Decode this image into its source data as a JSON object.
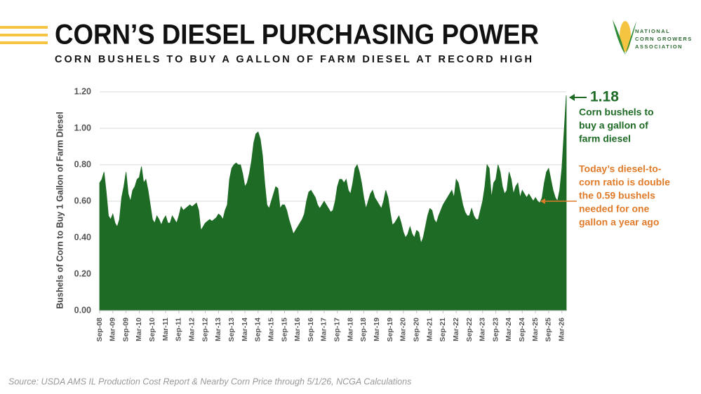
{
  "chart_data": {
    "type": "area",
    "title": "CORN’S DIESEL PURCHASING POWER",
    "subtitle": "CORN BUSHELS TO BUY A GALLON OF FARM DIESEL AT RECORD HIGH",
    "y_label": "Bushels of Corn to Buy 1 Gallon of Farm Diesel",
    "source": "Source: USDA AMS IL Production Cost Report & Nearby Corn Price through 5/1/26, NCGA Calculations",
    "logo": [
      "NATIONAL",
      "CORN GROWERS",
      "ASSOCIATION"
    ],
    "color": "#1e6b26",
    "grid": true,
    "ylim": [
      0,
      1.2
    ],
    "yticks": [
      {
        "value": 0,
        "label": "0.00"
      },
      {
        "value": 0.2,
        "label": "0.20"
      },
      {
        "value": 0.4,
        "label": "0.40"
      },
      {
        "value": 0.6,
        "label": "0.60"
      },
      {
        "value": 0.8,
        "label": "0.80"
      },
      {
        "value": 1.0,
        "label": "1.00"
      },
      {
        "value": 1.2,
        "label": "1.20"
      }
    ],
    "annotations": [
      {
        "color": "#1e6b26",
        "lines": [
          "Corn bushels to",
          "buy a gallon of",
          "farm diesel"
        ]
      },
      {
        "color": "#e07b2a",
        "lines": [
          "Today’s diesel-to-",
          "corn ratio is double",
          "the 0.59 bushels",
          "needed for one",
          "gallon a year ago"
        ]
      }
    ],
    "categories": [
      "Sep-08",
      null,
      null,
      null,
      null,
      null,
      "Mar-09",
      null,
      null,
      null,
      null,
      null,
      "Sep-09",
      null,
      null,
      null,
      null,
      null,
      "Mar-10",
      null,
      null,
      null,
      null,
      null,
      "Sep-10",
      null,
      null,
      null,
      null,
      null,
      "Mar-11",
      null,
      null,
      null,
      null,
      null,
      "Sep-11",
      null,
      null,
      null,
      null,
      null,
      "Mar-12",
      null,
      null,
      null,
      null,
      null,
      "Sep-12",
      null,
      null,
      null,
      null,
      null,
      "Mar-13",
      null,
      null,
      null,
      null,
      null,
      "Sep-13",
      null,
      null,
      null,
      null,
      null,
      "Mar-14",
      null,
      null,
      null,
      null,
      null,
      "Sep-14",
      null,
      null,
      null,
      null,
      null,
      "Mar-15",
      null,
      null,
      null,
      null,
      null,
      "Sep-15",
      null,
      null,
      null,
      null,
      null,
      "Mar-16",
      null,
      null,
      null,
      null,
      null,
      "Sep-16",
      null,
      null,
      null,
      null,
      null,
      "Mar-17",
      null,
      null,
      null,
      null,
      null,
      "Sep-17",
      null,
      null,
      null,
      null,
      null,
      "Mar-18",
      null,
      null,
      null,
      null,
      null,
      "Sep-18",
      null,
      null,
      null,
      null,
      null,
      "Mar-19",
      null,
      null,
      null,
      null,
      null,
      "Sep-19",
      null,
      null,
      null,
      null,
      null,
      "Mar-20",
      null,
      null,
      null,
      null,
      null,
      "Sep-20",
      null,
      null,
      null,
      null,
      null,
      "Mar-21",
      null,
      null,
      null,
      null,
      null,
      "Sep-21",
      null,
      null,
      null,
      null,
      null,
      "Mar-22",
      null,
      null,
      null,
      null,
      null,
      "Sep-22",
      null,
      null,
      null,
      null,
      null,
      "Mar-23",
      null,
      null,
      null,
      null,
      null,
      "Sep-23",
      null,
      null,
      null,
      null,
      null,
      "Mar-24",
      null,
      null,
      null,
      null,
      null,
      "Sep-24",
      null,
      null,
      null,
      null,
      null,
      "Mar-25",
      null,
      null,
      null,
      null,
      null,
      "Sep-25",
      null,
      null,
      null,
      null,
      null,
      "Mar-26",
      null,
      null
    ],
    "values": [
      0.7,
      0.72,
      0.76,
      0.65,
      0.52,
      0.5,
      0.53,
      0.48,
      0.46,
      0.5,
      0.62,
      0.68,
      0.76,
      0.64,
      0.6,
      0.66,
      0.68,
      0.72,
      0.73,
      0.79,
      0.7,
      0.72,
      0.66,
      0.58,
      0.5,
      0.48,
      0.52,
      0.5,
      0.47,
      0.5,
      0.52,
      0.48,
      0.48,
      0.52,
      0.5,
      0.48,
      0.52,
      0.57,
      0.55,
      0.56,
      0.57,
      0.58,
      0.57,
      0.58,
      0.59,
      0.55,
      0.44,
      0.46,
      0.48,
      0.49,
      0.5,
      0.49,
      0.5,
      0.51,
      0.53,
      0.52,
      0.5,
      0.55,
      0.58,
      0.72,
      0.78,
      0.8,
      0.81,
      0.8,
      0.8,
      0.75,
      0.68,
      0.7,
      0.75,
      0.82,
      0.92,
      0.97,
      0.98,
      0.94,
      0.85,
      0.7,
      0.58,
      0.56,
      0.6,
      0.64,
      0.68,
      0.67,
      0.56,
      0.58,
      0.58,
      0.55,
      0.5,
      0.46,
      0.42,
      0.44,
      0.46,
      0.48,
      0.5,
      0.53,
      0.6,
      0.65,
      0.66,
      0.64,
      0.62,
      0.58,
      0.56,
      0.58,
      0.6,
      0.58,
      0.56,
      0.54,
      0.55,
      0.6,
      0.68,
      0.72,
      0.72,
      0.7,
      0.72,
      0.66,
      0.64,
      0.7,
      0.78,
      0.8,
      0.76,
      0.7,
      0.62,
      0.56,
      0.6,
      0.64,
      0.66,
      0.62,
      0.6,
      0.58,
      0.56,
      0.6,
      0.66,
      0.62,
      0.54,
      0.47,
      0.48,
      0.5,
      0.52,
      0.48,
      0.43,
      0.4,
      0.42,
      0.46,
      0.42,
      0.4,
      0.44,
      0.43,
      0.37,
      0.4,
      0.46,
      0.52,
      0.56,
      0.55,
      0.5,
      0.48,
      0.52,
      0.55,
      0.58,
      0.6,
      0.62,
      0.64,
      0.66,
      0.62,
      0.72,
      0.7,
      0.64,
      0.58,
      0.54,
      0.52,
      0.52,
      0.56,
      0.52,
      0.5,
      0.5,
      0.55,
      0.6,
      0.68,
      0.8,
      0.78,
      0.62,
      0.7,
      0.72,
      0.8,
      0.76,
      0.68,
      0.64,
      0.66,
      0.76,
      0.72,
      0.64,
      0.68,
      0.7,
      0.62,
      0.66,
      0.64,
      0.62,
      0.64,
      0.62,
      0.6,
      0.62,
      0.6,
      0.59,
      0.62,
      0.7,
      0.76,
      0.78,
      0.72,
      0.66,
      0.62,
      0.6,
      0.66,
      0.78,
      0.98,
      1.18
    ]
  }
}
